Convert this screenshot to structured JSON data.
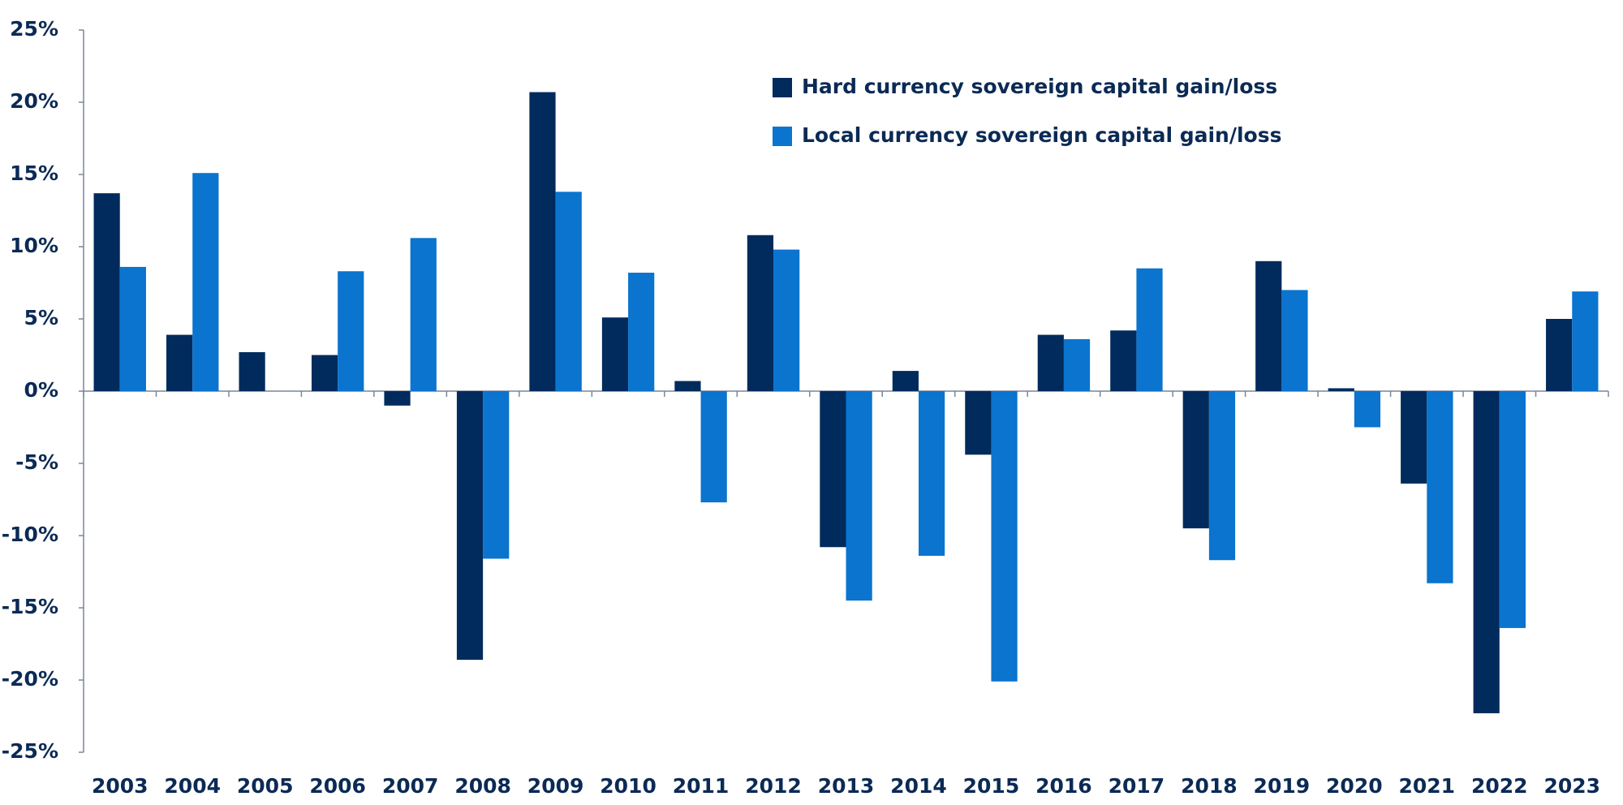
{
  "chart_data": {
    "type": "bar",
    "categories": [
      "2003",
      "2004",
      "2005",
      "2006",
      "2007",
      "2008",
      "2009",
      "2010",
      "2011",
      "2012",
      "2013",
      "2014",
      "2015",
      "2016",
      "2017",
      "2018",
      "2019",
      "2020",
      "2021",
      "2022",
      "2023"
    ],
    "series": [
      {
        "name": "Hard currency sovereign capital gain/loss",
        "color": "#002b5c",
        "values": [
          13.7,
          3.9,
          2.7,
          2.5,
          -1.0,
          -18.6,
          20.7,
          5.1,
          0.7,
          10.8,
          -10.8,
          1.4,
          -4.4,
          3.9,
          4.2,
          -9.5,
          9.0,
          0.2,
          -6.4,
          -22.3,
          5.0
        ]
      },
      {
        "name": "Local currency sovereign capital gain/loss",
        "color": "#0a74cf",
        "values": [
          8.6,
          15.1,
          null,
          8.3,
          10.6,
          -11.6,
          13.8,
          8.2,
          -7.7,
          9.8,
          -14.5,
          -11.4,
          -20.1,
          3.6,
          8.5,
          -11.7,
          7.0,
          -2.5,
          -13.3,
          -16.4,
          6.9
        ]
      }
    ],
    "ylim": [
      -25,
      25
    ],
    "yticks": [
      {
        "value": -25,
        "label": "-25%"
      },
      {
        "value": -20,
        "label": "-20%"
      },
      {
        "value": -15,
        "label": "-15%"
      },
      {
        "value": -10,
        "label": "-10%"
      },
      {
        "value": -5,
        "label": "-5%"
      },
      {
        "value": 0,
        "label": "0%"
      },
      {
        "value": 5,
        "label": "5%"
      },
      {
        "value": 10,
        "label": "10%"
      },
      {
        "value": 15,
        "label": "15%"
      },
      {
        "value": 20,
        "label": "20%"
      },
      {
        "value": 25,
        "label": "25%"
      }
    ],
    "grid": false,
    "legend": "top-center"
  }
}
